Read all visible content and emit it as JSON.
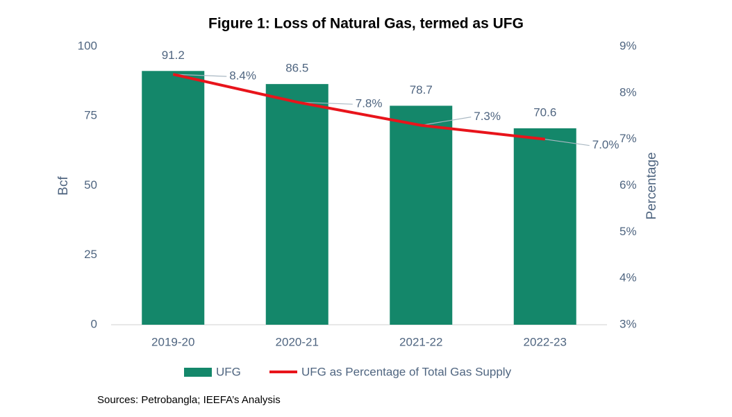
{
  "chart_data": {
    "type": "bar",
    "title": "Figure 1: Loss of Natural Gas, termed as UFG",
    "ylabel": "Bcf",
    "y2label": "Percentage",
    "categories": [
      "2019-20",
      "2020-21",
      "2021-22",
      "2022-23"
    ],
    "series": [
      {
        "name": "UFG",
        "type": "bar",
        "color": "#14876a",
        "values": [
          91.2,
          86.5,
          78.7,
          70.6
        ]
      },
      {
        "name": "UFG as Percentage of Total Gas Supply",
        "type": "line",
        "axis": "y2",
        "color": "#e8141b",
        "values": [
          8.4,
          7.8,
          7.3,
          7.0
        ],
        "value_labels": [
          "8.4%",
          "7.8%",
          "7.3%",
          "7.0%"
        ]
      }
    ],
    "ylim": [
      0,
      100
    ],
    "yticks": [
      0,
      25,
      50,
      75,
      100
    ],
    "y2lim": [
      3,
      9
    ],
    "y2ticks": [
      {
        "value": 3,
        "label": "3%"
      },
      {
        "value": 4,
        "label": "4%"
      },
      {
        "value": 5,
        "label": "5%"
      },
      {
        "value": 6,
        "label": "6%"
      },
      {
        "value": 7,
        "label": "7%"
      },
      {
        "value": 8,
        "label": "8%"
      },
      {
        "value": 9,
        "label": "9%"
      }
    ],
    "legend": "bottom",
    "source": "Sources: Petrobangla; IEEFA’s Analysis"
  }
}
